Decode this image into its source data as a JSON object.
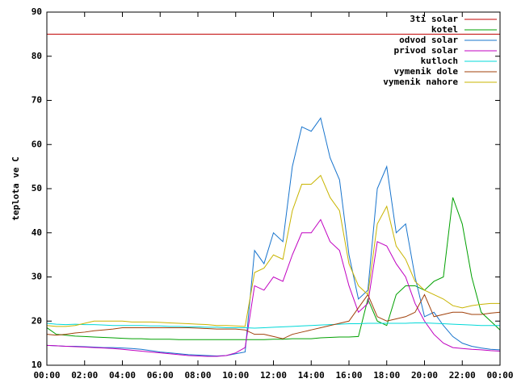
{
  "chart_data": {
    "type": "line",
    "y_label": "teplota ve C",
    "x": [
      0,
      0.5,
      1,
      1.5,
      2,
      2.5,
      3,
      3.5,
      4,
      4.5,
      5,
      5.5,
      6,
      6.5,
      7,
      7.5,
      8,
      8.5,
      9,
      9.5,
      10,
      10.5,
      11,
      11.5,
      12,
      12.5,
      13,
      13.5,
      14,
      14.5,
      15,
      15.5,
      16,
      16.5,
      17,
      17.5,
      18,
      18.5,
      19,
      19.5,
      20,
      20.5,
      21,
      21.5,
      22,
      22.5,
      23,
      23.5,
      24
    ],
    "xlim": [
      0,
      24
    ],
    "xticks": [
      {
        "value": 0,
        "label": "00:00"
      },
      {
        "value": 2,
        "label": "02:00"
      },
      {
        "value": 4,
        "label": "04:00"
      },
      {
        "value": 6,
        "label": "06:00"
      },
      {
        "value": 8,
        "label": "08:00"
      },
      {
        "value": 10,
        "label": "10:00"
      },
      {
        "value": 12,
        "label": "12:00"
      },
      {
        "value": 14,
        "label": "14:00"
      },
      {
        "value": 16,
        "label": "16:00"
      },
      {
        "value": 18,
        "label": "18:00"
      },
      {
        "value": 20,
        "label": "20:00"
      },
      {
        "value": 22,
        "label": "22:00"
      },
      {
        "value": 24,
        "label": "00:00"
      }
    ],
    "ylim": [
      10,
      90
    ],
    "yticks": [
      10,
      20,
      30,
      40,
      50,
      60,
      70,
      80,
      90
    ],
    "grid": false,
    "legend": "top-right",
    "series": [
      {
        "name": "3ti solar",
        "color": "#c00000",
        "values": [
          85,
          85,
          85,
          85,
          85,
          85,
          85,
          85,
          85,
          85,
          85,
          85,
          85,
          85,
          85,
          85,
          85,
          85,
          85,
          85,
          85,
          85,
          85,
          85,
          85,
          85,
          85,
          85,
          85,
          85,
          85,
          85,
          85,
          85,
          85,
          85,
          85,
          85,
          85,
          85,
          85,
          85,
          85,
          85,
          85,
          85,
          85,
          85,
          85
        ]
      },
      {
        "name": "kotel",
        "color": "#00a000",
        "values": [
          18.5,
          17,
          16.8,
          16.6,
          16.5,
          16.4,
          16.3,
          16.2,
          16.1,
          16,
          16,
          15.9,
          15.9,
          15.9,
          15.8,
          15.8,
          15.8,
          15.8,
          15.8,
          15.8,
          15.8,
          15.8,
          15.8,
          15.8,
          15.9,
          15.9,
          16,
          16,
          16,
          16.2,
          16.3,
          16.4,
          16.4,
          16.5,
          25,
          20,
          19,
          26,
          28,
          28,
          27,
          29,
          30,
          48,
          42,
          30,
          22,
          20,
          18
        ]
      },
      {
        "name": "odvod solar",
        "color": "#1874cd",
        "values": [
          14.5,
          14.4,
          14.3,
          14.3,
          14.2,
          14.1,
          14,
          14,
          13.9,
          13.8,
          13.6,
          13.3,
          13,
          12.8,
          12.6,
          12.4,
          12.3,
          12.2,
          12.1,
          12.2,
          12.6,
          13,
          36,
          33,
          40,
          38,
          55,
          64,
          63,
          66,
          57,
          52,
          35,
          25,
          27,
          50,
          55,
          40,
          42,
          30,
          21,
          22,
          19,
          16.5,
          15,
          14.3,
          13.9,
          13.6,
          13.5
        ]
      },
      {
        "name": "privod solar",
        "color": "#c000c0",
        "values": [
          14.5,
          14.4,
          14.3,
          14.2,
          14.1,
          14,
          13.9,
          13.8,
          13.6,
          13.4,
          13.2,
          13,
          12.8,
          12.6,
          12.4,
          12.2,
          12.1,
          12,
          12,
          12.2,
          12.8,
          14,
          28,
          27,
          30,
          29,
          35,
          40,
          40,
          43,
          38,
          36,
          28,
          22,
          24,
          38,
          37,
          33,
          30,
          24,
          20,
          17,
          15,
          14,
          13.8,
          13.6,
          13.5,
          13.3,
          13.2
        ]
      },
      {
        "name": "kutloch",
        "color": "#00d8d8",
        "values": [
          19.5,
          19.3,
          19.2,
          19.3,
          19.2,
          19.2,
          19.1,
          19,
          19,
          19,
          19,
          18.9,
          18.9,
          18.8,
          18.8,
          18.7,
          18.7,
          18.6,
          18.6,
          18.5,
          18.5,
          18.5,
          18.4,
          18.5,
          18.6,
          18.7,
          18.8,
          18.9,
          19,
          19.1,
          19.2,
          19.3,
          19.4,
          19.4,
          19.5,
          19.5,
          19.5,
          19.5,
          19.5,
          19.6,
          19.6,
          19.5,
          19.4,
          19.3,
          19.2,
          19.1,
          19,
          19,
          19
        ]
      },
      {
        "name": "vymenik dole",
        "color": "#a0400a",
        "values": [
          17,
          16.8,
          17,
          17.3,
          17.5,
          17.8,
          18,
          18.2,
          18.5,
          18.5,
          18.5,
          18.5,
          18.5,
          18.5,
          18.5,
          18.5,
          18.4,
          18.3,
          18.2,
          18.2,
          18.2,
          18,
          17,
          17,
          16.5,
          16,
          17,
          17.5,
          18,
          18.5,
          19,
          19.5,
          20,
          23,
          26,
          21,
          20,
          20.5,
          21,
          22,
          26,
          21,
          21.5,
          22,
          22,
          21.5,
          21.5,
          21.8,
          22
        ]
      },
      {
        "name": "vymenik nahore",
        "color": "#c8b400",
        "values": [
          19,
          18.8,
          18.8,
          19,
          19.5,
          20,
          20,
          20,
          20,
          19.8,
          19.8,
          19.8,
          19.7,
          19.6,
          19.5,
          19.4,
          19.3,
          19.2,
          19,
          19,
          18.9,
          18.8,
          31,
          32,
          35,
          34,
          45,
          51,
          51,
          53,
          48,
          45,
          33,
          28,
          26,
          42,
          46,
          37,
          34,
          29,
          27,
          26,
          25,
          23.5,
          23,
          23.5,
          23.8,
          24,
          24
        ]
      }
    ]
  }
}
